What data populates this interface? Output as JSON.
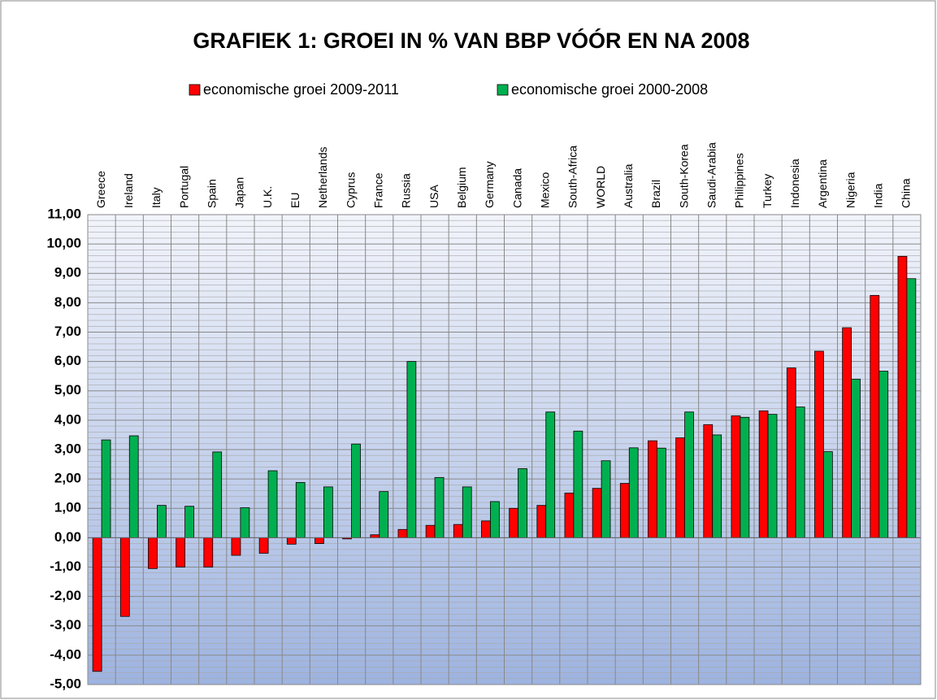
{
  "chart_data": {
    "type": "bar",
    "title": "GRAFIEK 1: GROEI IN % VAN BBP VÓÓR EN NA 2008",
    "categories": [
      "Greece",
      "Ireland",
      "Italy",
      "Portugal",
      "Spain",
      "Japan",
      "U.K.",
      "EU",
      "Netherlands",
      "Cyprus",
      "France",
      "Russia",
      "USA",
      "Belgium",
      "Germany",
      "Canada",
      "Mexico",
      "South-Africa",
      "WORLD",
      "Australia",
      "Brazil",
      "South-Korea",
      "Saudi-Arabia",
      "Philippines",
      "Turkey",
      "Indonesia",
      "Argentina",
      "Nigeria",
      "India",
      "China"
    ],
    "series": [
      {
        "name": "economische groei 2009-2011",
        "color": "#ff0000",
        "values": [
          -4.55,
          -2.68,
          -1.05,
          -1.0,
          -1.0,
          -0.6,
          -0.53,
          -0.22,
          -0.2,
          -0.04,
          0.1,
          0.28,
          0.42,
          0.45,
          0.57,
          1.0,
          1.1,
          1.52,
          1.68,
          1.85,
          3.3,
          3.4,
          3.85,
          4.15,
          4.32,
          5.78,
          6.35,
          7.15,
          8.25,
          9.58
        ]
      },
      {
        "name": "economische groei 2000-2008",
        "color": "#00b050",
        "values": [
          3.33,
          3.47,
          1.1,
          1.07,
          2.92,
          1.02,
          2.28,
          1.88,
          1.73,
          3.19,
          1.57,
          6.0,
          2.05,
          1.73,
          1.23,
          2.35,
          4.28,
          3.63,
          2.62,
          3.06,
          3.05,
          4.28,
          3.5,
          4.1,
          4.2,
          4.45,
          2.93,
          5.4,
          5.67,
          8.82
        ]
      }
    ],
    "ylim": [
      -5,
      11
    ],
    "yticks": [
      {
        "value": 11,
        "label": "11,00"
      },
      {
        "value": 10,
        "label": "10,00"
      },
      {
        "value": 9,
        "label": "9,00"
      },
      {
        "value": 8,
        "label": "8,00"
      },
      {
        "value": 7,
        "label": "7,00"
      },
      {
        "value": 6,
        "label": "6,00"
      },
      {
        "value": 5,
        "label": "5,00"
      },
      {
        "value": 4,
        "label": "4,00"
      },
      {
        "value": 3,
        "label": "3,00"
      },
      {
        "value": 2,
        "label": "2,00"
      },
      {
        "value": 1,
        "label": "1,00"
      },
      {
        "value": 0,
        "label": "0,00"
      },
      {
        "value": -1,
        "label": "-1,00"
      },
      {
        "value": -2,
        "label": "-2,00"
      },
      {
        "value": -3,
        "label": "-3,00"
      },
      {
        "value": -4,
        "label": "-4,00"
      },
      {
        "value": -5,
        "label": "-5,00"
      }
    ],
    "grid": true,
    "minor_ticks_per_major": 5,
    "legend": "top"
  }
}
